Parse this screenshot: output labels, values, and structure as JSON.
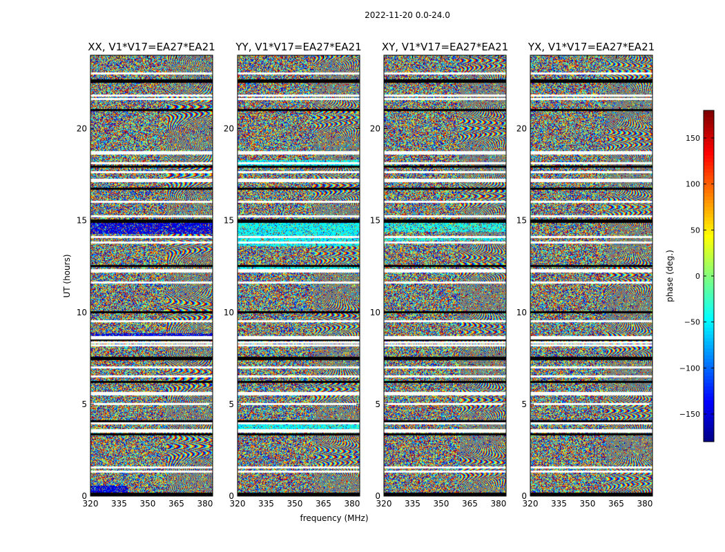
{
  "chart_data": {
    "type": "heatmap",
    "title": "2022-11-20 0.0-24.0",
    "xlabel": "frequency (MHz)",
    "ylabel": "UT (hours)",
    "xlim": [
      320,
      384
    ],
    "ylim": [
      0,
      24
    ],
    "x_ticks": [
      320,
      335,
      350,
      365,
      380
    ],
    "x_tick_labels": [
      "320",
      "335",
      "350",
      "365",
      "380"
    ],
    "y_ticks": [
      0,
      5,
      10,
      15,
      20
    ],
    "y_tick_labels": [
      "0",
      "5",
      "10",
      "15",
      "20"
    ],
    "panels": [
      {
        "title": "XX, V1*V17=EA27*EA21",
        "bias": "blue"
      },
      {
        "title": "YY, V1*V17=EA27*EA21",
        "bias": "cyan"
      },
      {
        "title": "XY, V1*V17=EA27*EA21",
        "bias": "cyan-light"
      },
      {
        "title": "YX, V1*V17=EA27*EA21",
        "bias": "none"
      }
    ],
    "colorbar": {
      "label": "phase (deg.)",
      "range": [
        -180,
        180
      ],
      "ticks": [
        150,
        100,
        50,
        0,
        -50,
        -100,
        -150
      ],
      "tick_labels": [
        "150",
        "100",
        "50",
        "0",
        "−50",
        "−100",
        "−150"
      ],
      "colormap": "jet"
    },
    "flagged_ut_hours": [
      0.1,
      1.3,
      1.55,
      3.35,
      3.55,
      3.95,
      4.05,
      5.0,
      5.6,
      6.2,
      6.5,
      7.0,
      7.5,
      8.2,
      8.35,
      8.5,
      8.65,
      9.5,
      10.0,
      11.6,
      12.3,
      12.5,
      13.8,
      14.1,
      15.0,
      15.2,
      16.0,
      16.7,
      17.2,
      17.6,
      17.9,
      18.1,
      18.7,
      21.0,
      21.6,
      21.8,
      22.6,
      23.0
    ]
  }
}
